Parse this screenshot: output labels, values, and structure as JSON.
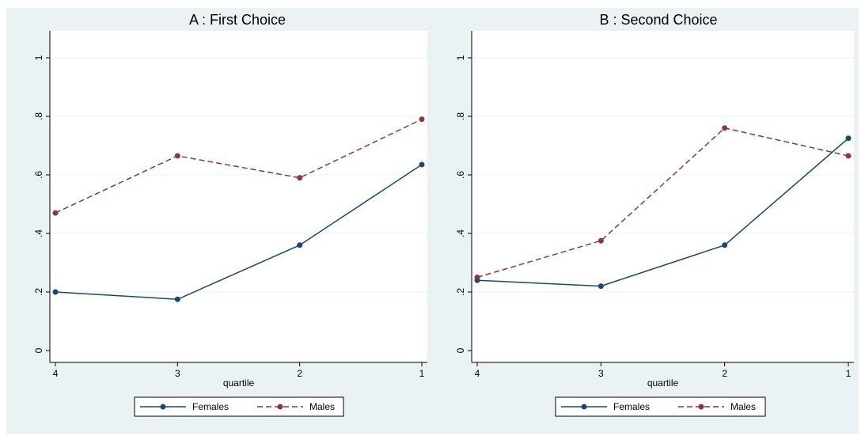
{
  "chart_data": [
    {
      "type": "line",
      "title": "A : First Choice",
      "xlabel": "quartile",
      "ylabel": "",
      "categories": [
        "4",
        "3",
        "2",
        "1"
      ],
      "yticks": [
        "0",
        ".2",
        ".4",
        ".6",
        ".8",
        "1"
      ],
      "ylim": [
        0,
        1
      ],
      "grid": true,
      "legend_position": "bottom",
      "series": [
        {
          "name": "Females",
          "values": [
            0.2,
            0.175,
            0.36,
            0.635
          ],
          "color": "#1a476f",
          "dash": "solid"
        },
        {
          "name": "Males",
          "values": [
            0.47,
            0.665,
            0.59,
            0.79
          ],
          "color": "#90353b",
          "dash": "dashed"
        }
      ]
    },
    {
      "type": "line",
      "title": "B : Second Choice",
      "xlabel": "quartile",
      "ylabel": "",
      "categories": [
        "4",
        "3",
        "2",
        "1"
      ],
      "yticks": [
        "0",
        ".2",
        ".4",
        ".6",
        ".8",
        "1"
      ],
      "ylim": [
        0,
        1
      ],
      "grid": true,
      "legend_position": "bottom",
      "series": [
        {
          "name": "Females",
          "values": [
            0.24,
            0.22,
            0.36,
            0.725
          ],
          "color": "#1a476f",
          "dash": "solid"
        },
        {
          "name": "Males",
          "values": [
            0.25,
            0.375,
            0.76,
            0.665
          ],
          "color": "#90353b",
          "dash": "dashed"
        }
      ]
    }
  ]
}
